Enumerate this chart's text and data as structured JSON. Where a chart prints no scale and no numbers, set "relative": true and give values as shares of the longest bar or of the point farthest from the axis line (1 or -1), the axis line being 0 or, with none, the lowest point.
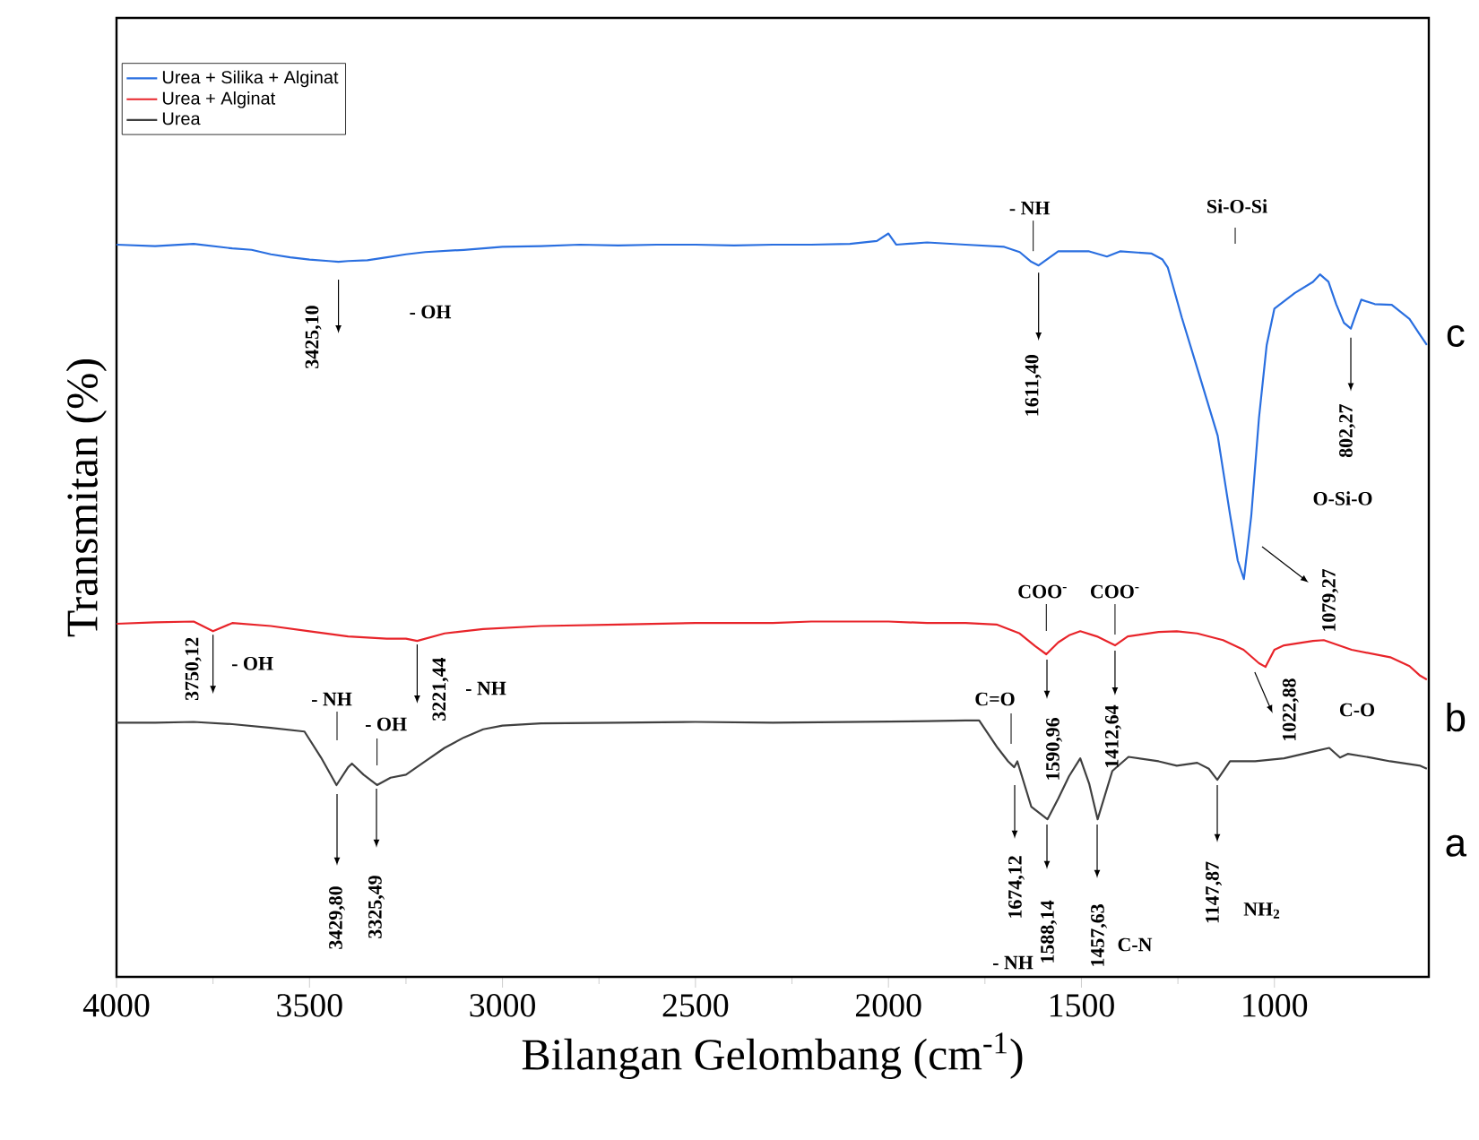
{
  "chart_data": {
    "type": "line",
    "relative": true,
    "tick_labels": "x",
    "legend": "top left",
    "xlabel": "Bilangan Gelombang (cm$^{-1}$)",
    "ylabel": "Transmitan (%)",
    "xlim": [
      4000,
      600
    ],
    "xticks": [
      4000,
      3500,
      3000,
      2500,
      2000,
      1500,
      1000
    ],
    "series": [
      {
        "name": "Urea + Silika + Alginat",
        "color": "#2a6fe0",
        "x": [
          4000,
          3900,
          3800,
          3700,
          3650,
          3600,
          3550,
          3500,
          3450,
          3425,
          3400,
          3350,
          3300,
          3250,
          3200,
          3100,
          3000,
          2900,
          2800,
          2700,
          2600,
          2500,
          2400,
          2300,
          2200,
          2100,
          2030,
          2000,
          1980,
          1900,
          1800,
          1700,
          1660,
          1630,
          1611,
          1590,
          1560,
          1480,
          1434,
          1400,
          1318,
          1290,
          1276,
          1240,
          1193,
          1147,
          1115,
          1095,
          1079,
          1060,
          1040,
          1020,
          1000,
          947,
          900,
          882,
          860,
          840,
          820,
          802,
          790,
          775,
          740,
          696,
          650,
          622,
          605
        ],
        "values": [
          0.985,
          0.983,
          0.986,
          0.98,
          0.978,
          0.972,
          0.968,
          0.965,
          0.963,
          0.962,
          0.963,
          0.964,
          0.968,
          0.972,
          0.975,
          0.978,
          0.982,
          0.983,
          0.985,
          0.984,
          0.985,
          0.985,
          0.984,
          0.985,
          0.985,
          0.986,
          0.99,
          1.0,
          0.985,
          0.988,
          0.985,
          0.982,
          0.975,
          0.962,
          0.957,
          0.965,
          0.976,
          0.976,
          0.969,
          0.976,
          0.973,
          0.965,
          0.954,
          0.887,
          0.807,
          0.728,
          0.622,
          0.56,
          0.535,
          0.62,
          0.752,
          0.85,
          0.899,
          0.92,
          0.935,
          0.945,
          0.935,
          0.905,
          0.88,
          0.872,
          0.89,
          0.911,
          0.905,
          0.904,
          0.885,
          0.863,
          0.85
        ]
      },
      {
        "name": "Urea + Alginat",
        "color": "#e8242a",
        "x": [
          4000,
          3900,
          3800,
          3750,
          3700,
          3600,
          3500,
          3400,
          3300,
          3250,
          3221,
          3150,
          3050,
          2900,
          2700,
          2500,
          2300,
          2200,
          2000,
          1900,
          1800,
          1720,
          1660,
          1620,
          1591,
          1560,
          1530,
          1503,
          1460,
          1413,
          1380,
          1300,
          1253,
          1200,
          1133,
          1080,
          1040,
          1023,
          1000,
          975,
          900,
          872,
          800,
          700,
          650,
          622,
          605
        ],
        "values": [
          0.475,
          0.477,
          0.478,
          0.465,
          0.476,
          0.472,
          0.465,
          0.458,
          0.455,
          0.455,
          0.452,
          0.462,
          0.468,
          0.472,
          0.474,
          0.476,
          0.476,
          0.478,
          0.478,
          0.476,
          0.476,
          0.474,
          0.462,
          0.445,
          0.434,
          0.45,
          0.46,
          0.465,
          0.458,
          0.446,
          0.458,
          0.464,
          0.465,
          0.462,
          0.453,
          0.44,
          0.422,
          0.417,
          0.44,
          0.446,
          0.452,
          0.453,
          0.44,
          0.43,
          0.418,
          0.405,
          0.4
        ]
      },
      {
        "name": "Urea",
        "color": "#404040",
        "x": [
          4000,
          3900,
          3800,
          3700,
          3600,
          3513,
          3470,
          3430,
          3400,
          3390,
          3360,
          3325,
          3290,
          3250,
          3200,
          3150,
          3100,
          3050,
          3000,
          2900,
          2700,
          2500,
          2300,
          2100,
          1900,
          1800,
          1765,
          1717,
          1690,
          1674,
          1666,
          1630,
          1588,
          1560,
          1532,
          1503,
          1480,
          1458,
          1420,
          1378,
          1300,
          1253,
          1200,
          1170,
          1148,
          1115,
          1050,
          975,
          900,
          858,
          830,
          810,
          750,
          700,
          622,
          605
        ],
        "values": [
          0.342,
          0.342,
          0.343,
          0.34,
          0.335,
          0.33,
          0.295,
          0.258,
          0.282,
          0.287,
          0.272,
          0.258,
          0.268,
          0.272,
          0.29,
          0.308,
          0.322,
          0.333,
          0.338,
          0.341,
          0.342,
          0.343,
          0.342,
          0.343,
          0.344,
          0.345,
          0.345,
          0.308,
          0.29,
          0.282,
          0.29,
          0.229,
          0.212,
          0.24,
          0.27,
          0.294,
          0.26,
          0.212,
          0.277,
          0.296,
          0.29,
          0.284,
          0.288,
          0.28,
          0.265,
          0.29,
          0.29,
          0.294,
          0.303,
          0.308,
          0.295,
          0.3,
          0.295,
          0.29,
          0.284,
          0.28
        ]
      }
    ],
    "annotations": [
      {
        "text": "3425,10",
        "x": 3425,
        "y": 0.962
      },
      "- OH",
      {
        "text": "- NH",
        "x": 1611,
        "y": 0.957
      },
      {
        "text": "1611,40",
        "x": 1611,
        "y": 0.957
      },
      "Si-O-Si",
      "1079,27",
      {
        "text": "802,27",
        "x": 802,
        "y": 0.872
      },
      "O-Si-O",
      {
        "text": "c",
        "x": 605,
        "y": 0.85
      },
      {
        "text": "3750,12",
        "x": 3750,
        "y": 0.465
      },
      {
        "text": "- OH",
        "x": 3750,
        "y": 0.465
      },
      {
        "text": "3221,44",
        "x": 3221,
        "y": 0.452
      },
      "- NH",
      {
        "text": "COO$^{-}$",
        "x": 1591,
        "y": 0.434
      },
      "1590,96",
      {
        "text": "COO$^{-}$",
        "x": 1413,
        "y": 0.446
      },
      {
        "text": "1412,64",
        "x": 1413,
        "y": 0.446
      },
      {
        "text": "1022,88",
        "x": 1023,
        "y": 0.417
      },
      "C-O",
      {
        "text": "b",
        "x": 605,
        "y": 0.4
      },
      "- NH",
      "3429,80",
      {
        "text": "- OH",
        "x": 3325,
        "y": 0.258
      },
      "3325,49",
      "C=O",
      "1674,12",
      "- NH",
      "1588,14",
      "1457,63",
      "C-N",
      "1147,87",
      "NH$_{2}$",
      {
        "text": "a",
        "x": 605,
        "y": 0.28
      }
    ]
  }
}
